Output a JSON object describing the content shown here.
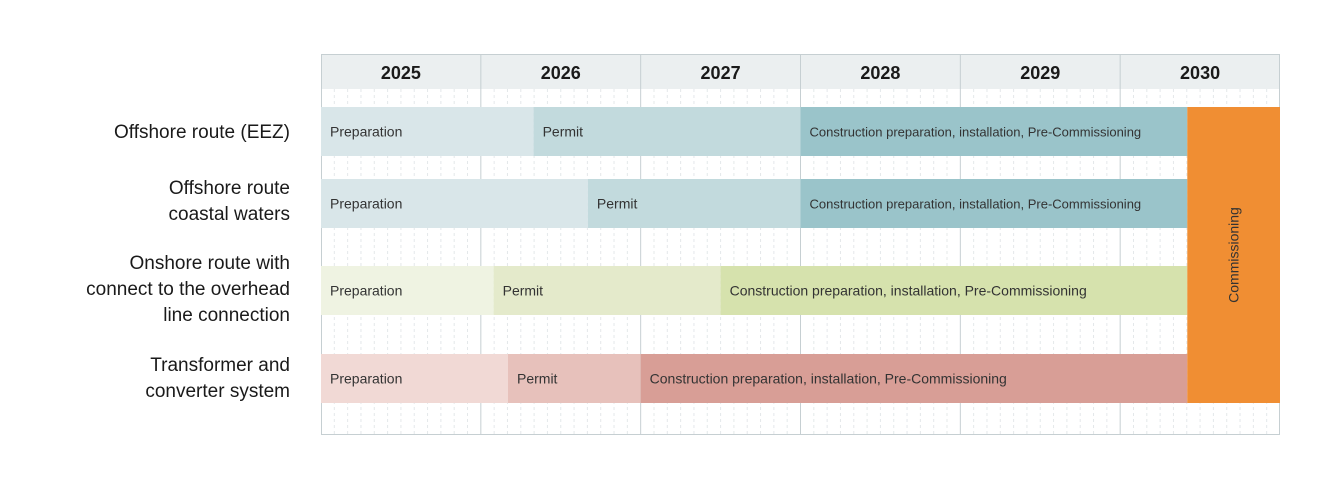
{
  "chart_data": {
    "type": "gantt",
    "years": [
      "2025",
      "2026",
      "2027",
      "2028",
      "2029",
      "2030"
    ],
    "start": 2025.0,
    "end": 2031.0,
    "rows": [
      {
        "label": "Offshore route (EEZ)",
        "phases": [
          {
            "label": "Preparation",
            "start": 2025.0,
            "end": 2026.33,
            "color": "#d9e6e9"
          },
          {
            "label": "Permit",
            "start": 2026.33,
            "end": 2028.0,
            "color": "#c2dadd"
          },
          {
            "label": "Construction preparation, installation, Pre-Commissioning",
            "start": 2028.0,
            "end": 2030.42,
            "color": "#9ac4ca"
          }
        ]
      },
      {
        "label": "Offshore route\ncoastal waters",
        "phases": [
          {
            "label": "Preparation",
            "start": 2025.0,
            "end": 2026.67,
            "color": "#d9e6e9"
          },
          {
            "label": "Permit",
            "start": 2026.67,
            "end": 2028.0,
            "color": "#c2dadd"
          },
          {
            "label": "Construction preparation, installation, Pre-Commissioning",
            "start": 2028.0,
            "end": 2030.42,
            "color": "#9ac4ca"
          }
        ]
      },
      {
        "label": "Onshore route with\nconnect to the overhead\nline connection",
        "phases": [
          {
            "label": "Preparation",
            "start": 2025.0,
            "end": 2026.08,
            "color": "#eff3e2"
          },
          {
            "label": "Permit",
            "start": 2026.08,
            "end": 2027.5,
            "color": "#e4eacb"
          },
          {
            "label": "Construction preparation, installation, Pre-Commissioning",
            "start": 2027.5,
            "end": 2030.42,
            "color": "#d6e2ad"
          }
        ]
      },
      {
        "label": "Transformer and\nconverter system",
        "phases": [
          {
            "label": "Preparation",
            "start": 2025.0,
            "end": 2026.17,
            "color": "#f1d9d5"
          },
          {
            "label": "Permit",
            "start": 2026.17,
            "end": 2027.0,
            "color": "#e7c1bb"
          },
          {
            "label": "Construction preparation, installation, Pre-Commissioning",
            "start": 2027.0,
            "end": 2030.42,
            "color": "#d89e96"
          }
        ]
      }
    ],
    "milestone": {
      "label": "Commissioning",
      "start": 2030.42,
      "end": 2031.0,
      "color": "#f08e33"
    },
    "colors": {
      "header_bg": "#ebeff0",
      "grid": "#c6cfd2",
      "minor_grid": "#e4e8ea"
    }
  }
}
